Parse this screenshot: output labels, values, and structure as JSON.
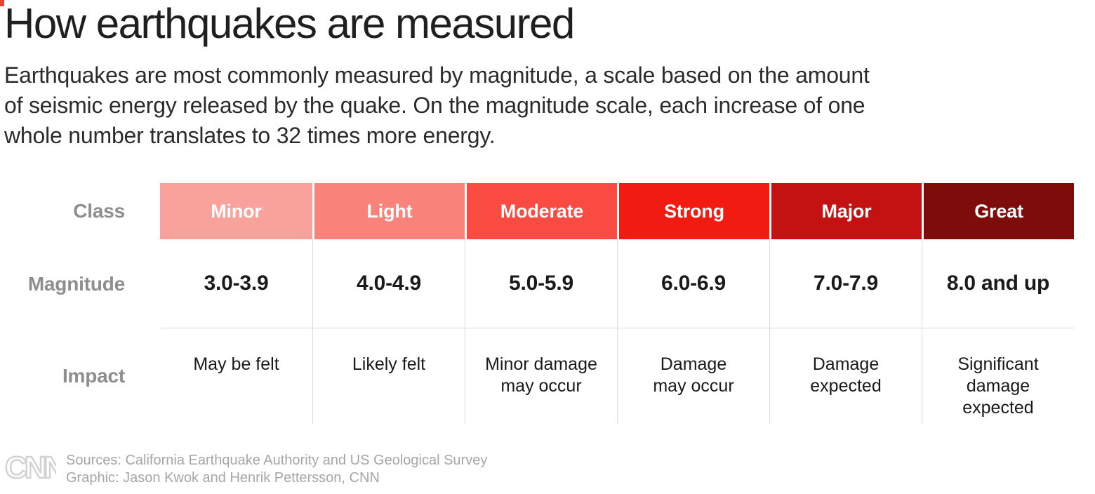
{
  "page": {
    "title": "How earthquakes are measured",
    "intro": "Earthquakes are most commonly measured by magnitude, a scale based on the amount\nof seismic energy released by the quake. On the magnitude scale, each increase of one\nwhole number translates to 32 times more energy."
  },
  "table": {
    "row_labels": {
      "class": "Class",
      "magnitude": "Magnitude",
      "impact": "Impact"
    },
    "columns": [
      {
        "name": "Minor",
        "color": "#f9a29c",
        "magnitude": "3.0-3.9",
        "impact_display": "May be felt"
      },
      {
        "name": "Light",
        "color": "#f9837b",
        "magnitude": "4.0-4.9",
        "impact_display": "Likely felt"
      },
      {
        "name": "Moderate",
        "color": "#fa4b42",
        "magnitude": "5.0-5.9",
        "impact_display": "Minor damage\nmay occur"
      },
      {
        "name": "Strong",
        "color": "#f21b11",
        "magnitude": "6.0-6.9",
        "impact_display": "Damage\nmay occur"
      },
      {
        "name": "Major",
        "color": "#c41212",
        "magnitude": "7.0-7.9",
        "impact_display": "Damage\nexpected"
      },
      {
        "name": "Great",
        "color": "#7d0c0a",
        "magnitude": "8.0 and up",
        "impact_display": "Significant\ndamage\nexpected"
      }
    ]
  },
  "chart_data": {
    "type": "table",
    "title": "How earthquakes are measured",
    "row_labels": [
      "Class",
      "Magnitude",
      "Impact"
    ],
    "classes": [
      "Minor",
      "Light",
      "Moderate",
      "Strong",
      "Major",
      "Great"
    ],
    "class_colors": [
      "#f9a29c",
      "#f9837b",
      "#fa4b42",
      "#f21b11",
      "#c41212",
      "#7d0c0a"
    ],
    "magnitudes": [
      "3.0-3.9",
      "4.0-4.9",
      "5.0-5.9",
      "6.0-6.9",
      "7.0-7.9",
      "8.0 and up"
    ],
    "impacts": [
      "May be felt",
      "Likely felt",
      "Minor damage may occur",
      "Damage may occur",
      "Damage expected",
      "Significant damage expected"
    ]
  },
  "footer": {
    "logo": "CNN",
    "sources_line": "Sources: California Earthquake Authority and US Geological Survey",
    "credit_line": "Graphic: Jason Kwok and Henrik Pettersson, CNN",
    "logo_color": "#d2d2d2"
  },
  "decoration": {
    "corner_mark_color": "#e8432e"
  }
}
